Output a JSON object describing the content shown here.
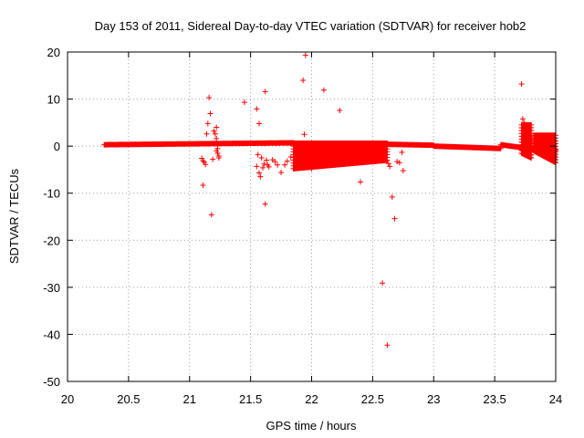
{
  "chart_data": {
    "type": "scatter",
    "title": "Day 153 of 2011, Sidereal Day-to-day VTEC variation (SDTVAR) for receiver hob2",
    "xlabel": "GPS time / hours",
    "ylabel": "SDTVAR / TECUs",
    "xlim": [
      20,
      24
    ],
    "ylim": [
      -50,
      20
    ],
    "xticks": [
      "20",
      "20.5",
      "21",
      "21.5",
      "22",
      "22.5",
      "23",
      "23.5",
      "24"
    ],
    "yticks": [
      "20",
      "10",
      "0",
      "-10",
      "-20",
      "-30",
      "-40",
      "-50"
    ],
    "grid": true,
    "marker": "plus",
    "series": [
      {
        "name": "SDTVAR",
        "color": "#ff0000",
        "bands": [
          {
            "x_start": 20.3,
            "x_end": 21.85,
            "y_start": 0.3,
            "y_end": 0.7
          },
          {
            "x_start": 21.85,
            "x_end": 22.6,
            "y_start": 0.5,
            "y_end": 0.2
          },
          {
            "x_start": 22.6,
            "x_end": 23.0,
            "y_start": 0.4,
            "y_end": 0.2
          },
          {
            "x_start": 23.0,
            "x_end": 23.55,
            "y_start": 0.0,
            "y_end": -0.5
          },
          {
            "x_start": 23.55,
            "x_end": 23.8,
            "y_start": 0.3,
            "y_end": -0.6
          },
          {
            "x_start": 23.8,
            "x_end": 24.0,
            "y_start": -0.6,
            "y_end": -0.9
          }
        ],
        "columns": [
          {
            "x_start": 21.85,
            "x_end": 22.62,
            "y_top": 0.6,
            "y_bottom_start": -4.8,
            "y_bottom_end": -3.0
          },
          {
            "x_start": 23.72,
            "x_end": 23.8,
            "y_top": 4.5,
            "y_bottom_start": -1.5,
            "y_bottom_end": -2.5
          },
          {
            "x_start": 23.82,
            "x_end": 24.0,
            "y_top": 2.3,
            "y_bottom_start": -1.0,
            "y_bottom_end": -3.5
          }
        ],
        "points": [
          [
            21.1,
            -2.6
          ],
          [
            21.11,
            -3.1
          ],
          [
            21.12,
            -3.4
          ],
          [
            21.13,
            -3.9
          ],
          [
            21.11,
            -8.3
          ],
          [
            21.14,
            2.6
          ],
          [
            21.15,
            4.8
          ],
          [
            21.16,
            10.3
          ],
          [
            21.17,
            6.9
          ],
          [
            21.18,
            -14.6
          ],
          [
            21.19,
            -2.8
          ],
          [
            21.2,
            3.2
          ],
          [
            21.21,
            2.6
          ],
          [
            21.22,
            1.6
          ],
          [
            21.22,
            4.0
          ],
          [
            21.23,
            -0.5
          ],
          [
            21.23,
            -1.5
          ],
          [
            21.24,
            -2.1
          ],
          [
            21.24,
            -2.5
          ],
          [
            21.22,
            -1.0
          ],
          [
            21.45,
            9.3
          ],
          [
            21.55,
            7.9
          ],
          [
            21.57,
            4.8
          ],
          [
            21.55,
            -4.3
          ],
          [
            21.56,
            -1.8
          ],
          [
            21.57,
            -5.7
          ],
          [
            21.58,
            -6.5
          ],
          [
            21.59,
            -2.5
          ],
          [
            21.6,
            -4.6
          ],
          [
            21.61,
            -3.8
          ],
          [
            21.62,
            11.6
          ],
          [
            21.62,
            -12.3
          ],
          [
            21.63,
            -3.0
          ],
          [
            21.64,
            -4.0
          ],
          [
            21.65,
            -4.4
          ],
          [
            21.68,
            -2.9
          ],
          [
            21.7,
            -3.3
          ],
          [
            21.72,
            -4.0
          ],
          [
            21.75,
            -5.6
          ],
          [
            21.78,
            -4.0
          ],
          [
            21.8,
            -3.2
          ],
          [
            21.83,
            -2.3
          ],
          [
            21.93,
            14.0
          ],
          [
            21.95,
            19.3
          ],
          [
            21.94,
            2.5
          ],
          [
            22.0,
            -4.8
          ],
          [
            22.1,
            11.9
          ],
          [
            22.23,
            7.6
          ],
          [
            22.4,
            -7.6
          ],
          [
            22.58,
            -29.1
          ],
          [
            22.62,
            -42.3
          ],
          [
            22.63,
            -3.7
          ],
          [
            22.64,
            -4.3
          ],
          [
            22.66,
            -10.8
          ],
          [
            22.68,
            -15.4
          ],
          [
            22.7,
            -3.3
          ],
          [
            22.72,
            -3.5
          ],
          [
            22.74,
            -1.3
          ],
          [
            22.75,
            -5.2
          ],
          [
            23.72,
            13.2
          ],
          [
            23.73,
            5.8
          ],
          [
            23.74,
            5.0
          ]
        ]
      }
    ]
  }
}
